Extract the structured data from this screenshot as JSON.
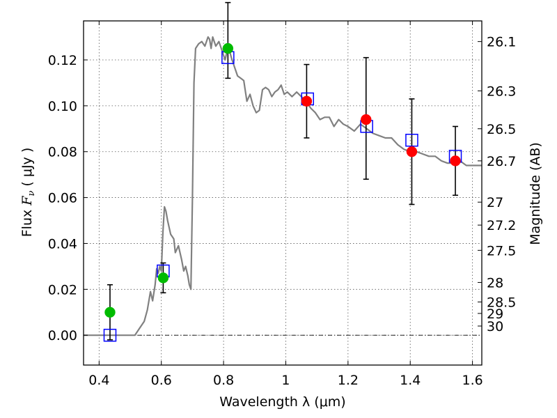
{
  "chart_data": {
    "type": "scatter",
    "xlabel": "Wavelength  λ (μm)",
    "ylabel": "Flux  Fν  ( μJy )",
    "ylabel_parts": {
      "prefix": "Flux  ",
      "symbol": "F",
      "subscript": "ν",
      "suffix": "  ( μJy )"
    },
    "ylabel_right": "Magnitude (AB)",
    "xlim": [
      0.35,
      1.63
    ],
    "ylim": [
      -0.013,
      0.137
    ],
    "grid": true,
    "x_ticks": [
      {
        "value": 0.4,
        "label": "0.4"
      },
      {
        "value": 0.6,
        "label": "0.6"
      },
      {
        "value": 0.8,
        "label": "0.8"
      },
      {
        "value": 1.0,
        "label": "1"
      },
      {
        "value": 1.2,
        "label": "1.2"
      },
      {
        "value": 1.4,
        "label": "1.4"
      },
      {
        "value": 1.6,
        "label": "1.6"
      }
    ],
    "y_ticks": [
      {
        "value": 0.0,
        "label": "0.00"
      },
      {
        "value": 0.02,
        "label": "0.02"
      },
      {
        "value": 0.04,
        "label": "0.04"
      },
      {
        "value": 0.06,
        "label": "0.06"
      },
      {
        "value": 0.08,
        "label": "0.08"
      },
      {
        "value": 0.1,
        "label": "0.10"
      },
      {
        "value": 0.12,
        "label": "0.12"
      }
    ],
    "right_ticks": [
      {
        "flux": 0.128,
        "label": "26.1"
      },
      {
        "flux": 0.1065,
        "label": "26.3"
      },
      {
        "flux": 0.09,
        "label": "26.5"
      },
      {
        "flux": 0.076,
        "label": "26.7"
      },
      {
        "flux": 0.058,
        "label": "27"
      },
      {
        "flux": 0.048,
        "label": "27.2"
      },
      {
        "flux": 0.037,
        "label": "27.5"
      },
      {
        "flux": 0.023,
        "label": "28"
      },
      {
        "flux": 0.0145,
        "label": "28.5"
      },
      {
        "flux": 0.0095,
        "label": "29"
      },
      {
        "flux": 0.004,
        "label": "30"
      }
    ],
    "colors": {
      "model": "#808080",
      "observed": "#ff0000",
      "upper": "#00bb00",
      "model_phot": "#0000ff",
      "errorbar": "#000000",
      "grid": "#555555"
    },
    "model_sed": [
      [
        0.35,
        0.0
      ],
      [
        0.5,
        0.0
      ],
      [
        0.515,
        0.0
      ],
      [
        0.53,
        0.003
      ],
      [
        0.545,
        0.006
      ],
      [
        0.555,
        0.011
      ],
      [
        0.565,
        0.019
      ],
      [
        0.572,
        0.015
      ],
      [
        0.58,
        0.022
      ],
      [
        0.585,
        0.029
      ],
      [
        0.59,
        0.027
      ],
      [
        0.595,
        0.03
      ],
      [
        0.6,
        0.028
      ],
      [
        0.605,
        0.045
      ],
      [
        0.61,
        0.056
      ],
      [
        0.615,
        0.054
      ],
      [
        0.62,
        0.05
      ],
      [
        0.63,
        0.044
      ],
      [
        0.64,
        0.042
      ],
      [
        0.645,
        0.036
      ],
      [
        0.655,
        0.039
      ],
      [
        0.665,
        0.033
      ],
      [
        0.672,
        0.028
      ],
      [
        0.678,
        0.03
      ],
      [
        0.685,
        0.026
      ],
      [
        0.69,
        0.022
      ],
      [
        0.695,
        0.02
      ],
      [
        0.7,
        0.06
      ],
      [
        0.705,
        0.11
      ],
      [
        0.71,
        0.125
      ],
      [
        0.72,
        0.127
      ],
      [
        0.73,
        0.128
      ],
      [
        0.74,
        0.126
      ],
      [
        0.75,
        0.13
      ],
      [
        0.755,
        0.129
      ],
      [
        0.76,
        0.125
      ],
      [
        0.765,
        0.13
      ],
      [
        0.775,
        0.126
      ],
      [
        0.785,
        0.128
      ],
      [
        0.795,
        0.124
      ],
      [
        0.805,
        0.12
      ],
      [
        0.815,
        0.126
      ],
      [
        0.825,
        0.121
      ],
      [
        0.835,
        0.117
      ],
      [
        0.845,
        0.113
      ],
      [
        0.855,
        0.112
      ],
      [
        0.865,
        0.111
      ],
      [
        0.875,
        0.102
      ],
      [
        0.885,
        0.105
      ],
      [
        0.895,
        0.1
      ],
      [
        0.905,
        0.097
      ],
      [
        0.915,
        0.098
      ],
      [
        0.925,
        0.107
      ],
      [
        0.935,
        0.108
      ],
      [
        0.945,
        0.107
      ],
      [
        0.955,
        0.104
      ],
      [
        0.965,
        0.106
      ],
      [
        0.975,
        0.107
      ],
      [
        0.985,
        0.109
      ],
      [
        0.995,
        0.105
      ],
      [
        1.005,
        0.106
      ],
      [
        1.02,
        0.104
      ],
      [
        1.035,
        0.106
      ],
      [
        1.05,
        0.104
      ],
      [
        1.065,
        0.102
      ],
      [
        1.08,
        0.099
      ],
      [
        1.095,
        0.097
      ],
      [
        1.11,
        0.094
      ],
      [
        1.125,
        0.095
      ],
      [
        1.14,
        0.095
      ],
      [
        1.155,
        0.091
      ],
      [
        1.17,
        0.094
      ],
      [
        1.185,
        0.092
      ],
      [
        1.2,
        0.091
      ],
      [
        1.22,
        0.089
      ],
      [
        1.24,
        0.092
      ],
      [
        1.26,
        0.09
      ],
      [
        1.28,
        0.088
      ],
      [
        1.3,
        0.087
      ],
      [
        1.32,
        0.086
      ],
      [
        1.34,
        0.086
      ],
      [
        1.36,
        0.083
      ],
      [
        1.38,
        0.081
      ],
      [
        1.4,
        0.08
      ],
      [
        1.42,
        0.08
      ],
      [
        1.44,
        0.079
      ],
      [
        1.46,
        0.078
      ],
      [
        1.48,
        0.078
      ],
      [
        1.5,
        0.076
      ],
      [
        1.52,
        0.075
      ],
      [
        1.54,
        0.075
      ],
      [
        1.56,
        0.076
      ],
      [
        1.58,
        0.074
      ],
      [
        1.6,
        0.074
      ],
      [
        1.63,
        0.074
      ]
    ],
    "model_photometry": [
      {
        "x": 0.435,
        "y": 0.0
      },
      {
        "x": 0.606,
        "y": 0.028
      },
      {
        "x": 0.814,
        "y": 0.121
      },
      {
        "x": 1.07,
        "y": 0.103
      },
      {
        "x": 1.26,
        "y": 0.091
      },
      {
        "x": 1.405,
        "y": 0.085
      },
      {
        "x": 1.545,
        "y": 0.078
      }
    ],
    "observed_points": [
      {
        "x": 0.435,
        "y": 0.01,
        "yerr_low": 0.012,
        "yerr_high": 0.012,
        "kind": "upper"
      },
      {
        "x": 0.606,
        "y": 0.025,
        "yerr_low": 0.0065,
        "yerr_high": 0.0065,
        "kind": "upper"
      },
      {
        "x": 0.814,
        "y": 0.125,
        "yerr_low": 0.013,
        "yerr_high": 0.02,
        "kind": "upper"
      },
      {
        "x": 1.067,
        "y": 0.102,
        "yerr_low": 0.016,
        "yerr_high": 0.016,
        "kind": "detection"
      },
      {
        "x": 1.258,
        "y": 0.094,
        "yerr_low": 0.026,
        "yerr_high": 0.027,
        "kind": "detection"
      },
      {
        "x": 1.405,
        "y": 0.08,
        "yerr_low": 0.023,
        "yerr_high": 0.023,
        "kind": "detection"
      },
      {
        "x": 1.545,
        "y": 0.076,
        "yerr_low": 0.015,
        "yerr_high": 0.015,
        "kind": "detection"
      }
    ]
  }
}
